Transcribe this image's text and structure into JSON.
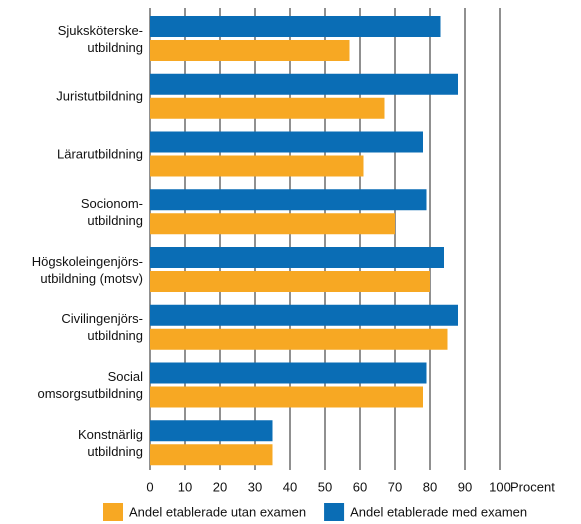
{
  "chart_data": {
    "type": "barh",
    "categories": [
      "Sjuksköterske-\nutbildning",
      "Juristutbildning",
      "Lärarutbildning",
      "Socionom-\nutbildning",
      "Högskoleingenjörs-\nutbildning (motsv)",
      "Civilingenjörs-\nutbildning",
      "Social\nomsorgsutbildning",
      "Konstnärlig\nutbildning"
    ],
    "series": [
      {
        "name": "Andel etablerade utan examen",
        "color": "#f7a823",
        "values": [
          57,
          67,
          61,
          70,
          80,
          85,
          78,
          35
        ]
      },
      {
        "name": "Andel etablerade med examen",
        "color": "#0a6db5",
        "values": [
          83,
          88,
          78,
          79,
          84,
          88,
          79,
          35
        ]
      }
    ],
    "x_label": "Procent",
    "xlim": [
      0,
      100
    ],
    "xticks": [
      0,
      10,
      20,
      30,
      40,
      50,
      60,
      70,
      80,
      90,
      100
    ],
    "grid": true
  }
}
